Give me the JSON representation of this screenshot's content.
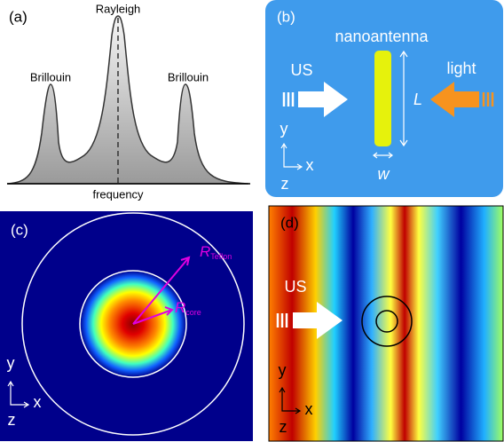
{
  "panel_a": {
    "label": "(a)",
    "rayleigh": "Rayleigh",
    "brillouin_left": "Brillouin",
    "brillouin_right": "Brillouin",
    "xlabel": "frequency"
  },
  "panel_b": {
    "label": "(b)",
    "title": "nanoantenna",
    "left_wave": "US",
    "right_wave": "light",
    "length": "L",
    "width": "w",
    "axes": {
      "y": "y",
      "x": "x",
      "z": "z"
    }
  },
  "panel_c": {
    "label": "(c)",
    "r_outer": {
      "symbol": "R",
      "sub": "Teflon"
    },
    "r_inner": {
      "symbol": "R",
      "sub": "core"
    },
    "axes": {
      "y": "y",
      "x": "x",
      "z": "z"
    }
  },
  "panel_d": {
    "label": "(d)",
    "wave": "US",
    "axes": {
      "y": "y",
      "x": "x",
      "z": "z"
    }
  }
}
